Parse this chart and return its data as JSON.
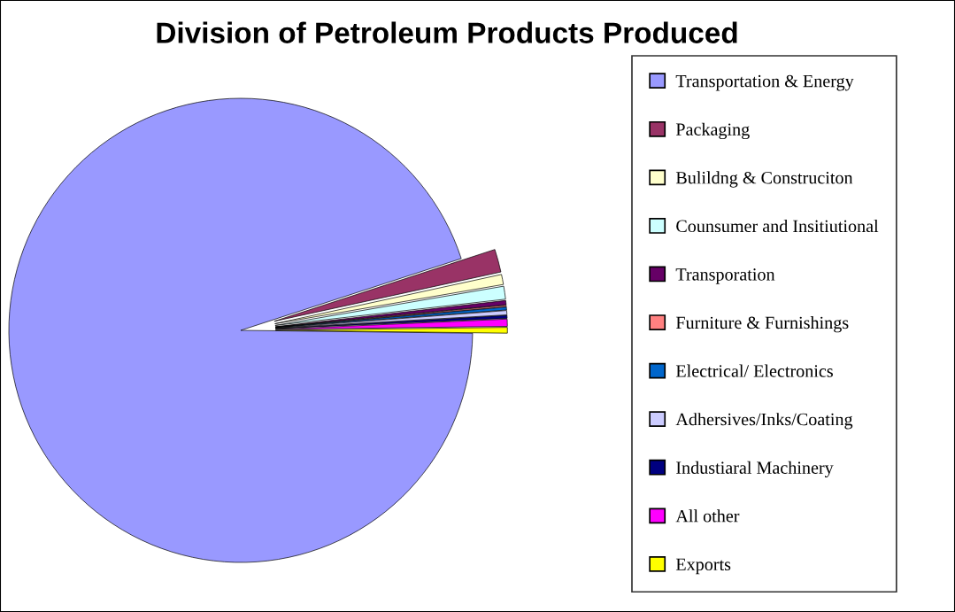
{
  "chart_data": {
    "type": "pie",
    "title": "Division of Petroleum Products Produced",
    "categories": [
      "Transportation & Energy",
      "Packaging",
      "Bulildng & Construciton",
      "Counsumer and Insitiutional",
      "Transporation",
      "Furniture & Furnishings",
      "Electrical/ Electronics",
      "Adhersives/Inks/Coating",
      "Industiaral Machinery",
      "All other",
      "Exports"
    ],
    "values": [
      94.8,
      1.6,
      0.7,
      0.9,
      0.3,
      0.1,
      0.2,
      0.3,
      0.2,
      0.5,
      0.4
    ],
    "colors": [
      "#9999ff",
      "#993366",
      "#ffffcc",
      "#ccffff",
      "#660066",
      "#ff8080",
      "#0066cc",
      "#ccccff",
      "#000080",
      "#ff00ff",
      "#ffff00"
    ],
    "legend": "right"
  }
}
